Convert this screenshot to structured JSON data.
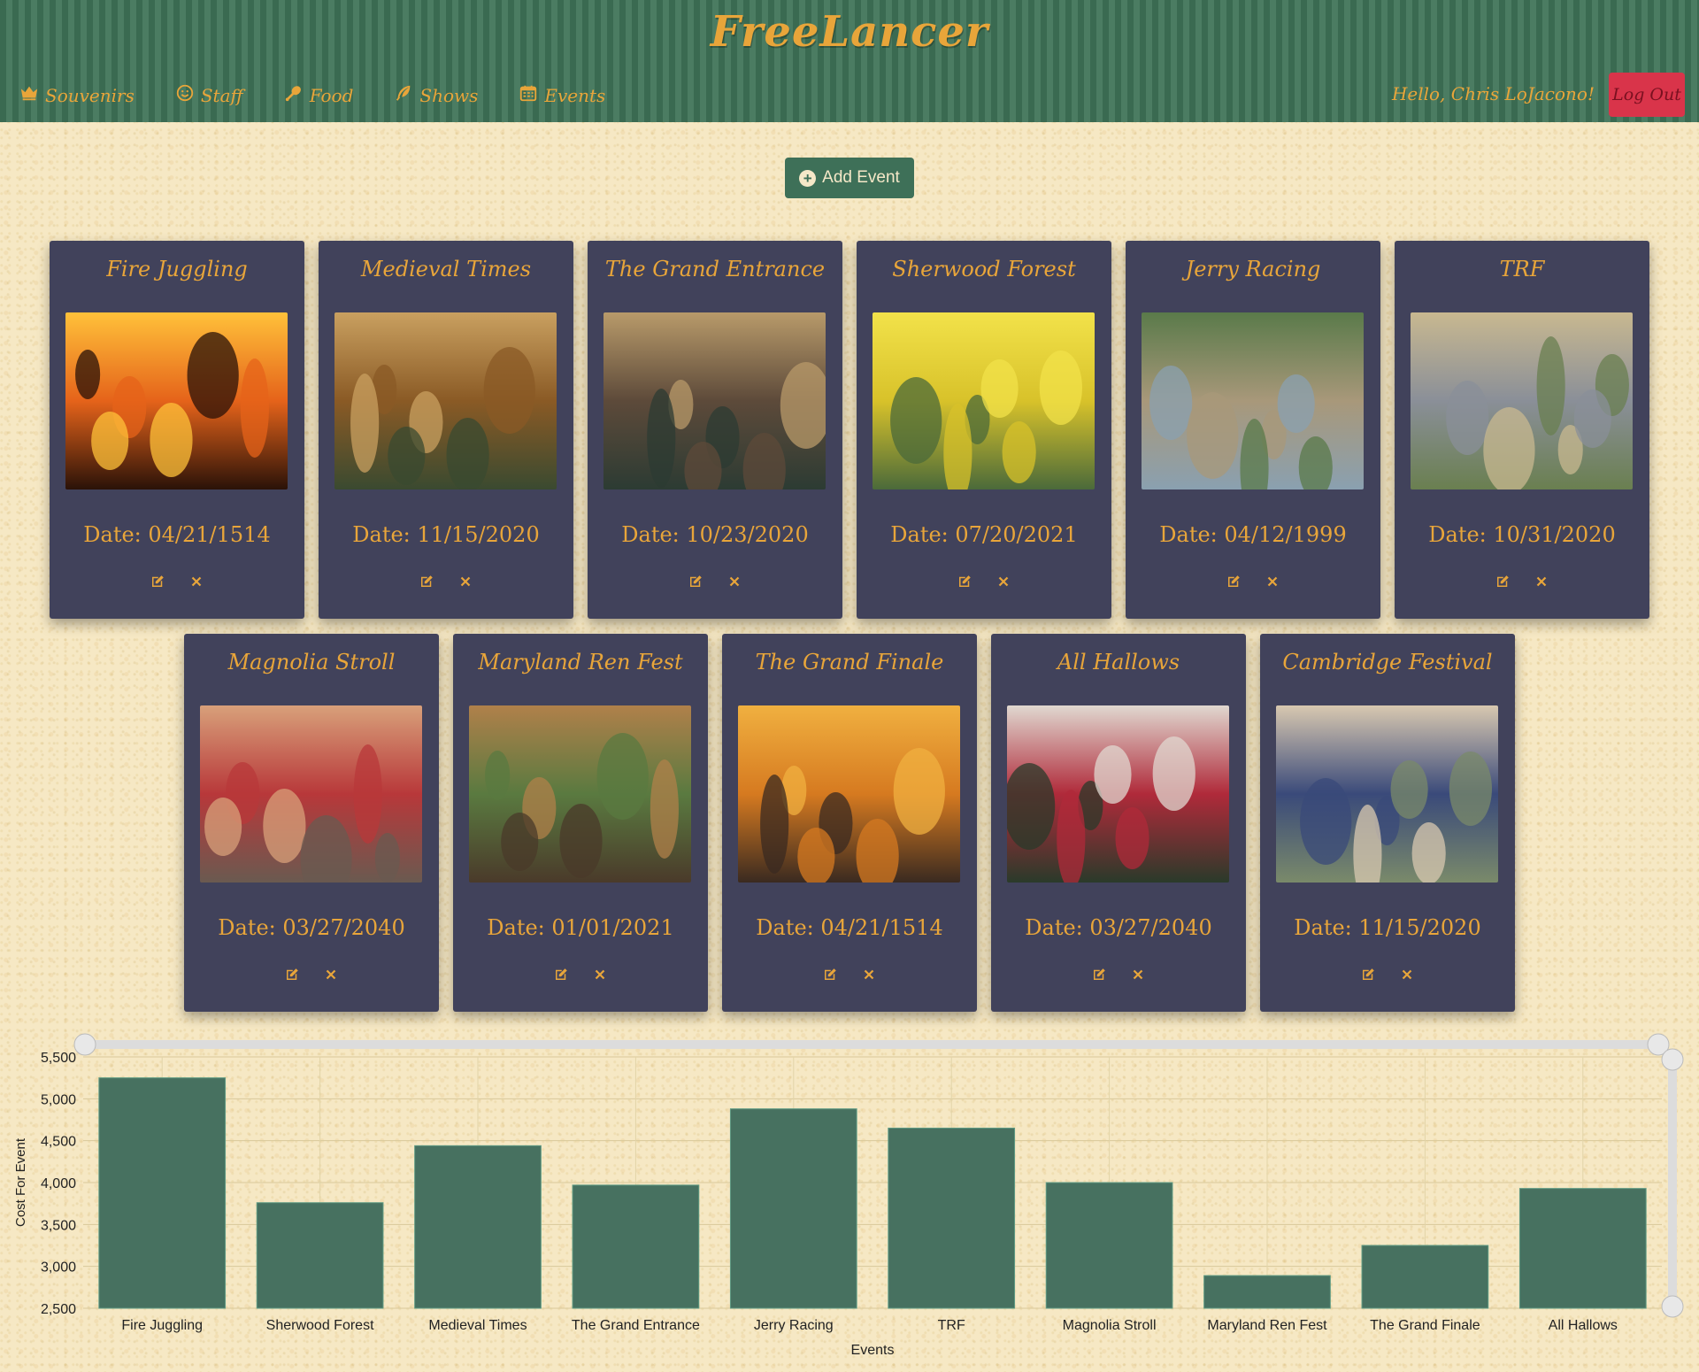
{
  "header": {
    "brand": "FreeLancer",
    "nav": [
      {
        "label": "Souvenirs",
        "icon": "crown-icon"
      },
      {
        "label": "Staff",
        "icon": "smile-icon"
      },
      {
        "label": "Food",
        "icon": "drumstick-icon"
      },
      {
        "label": "Shows",
        "icon": "feather-icon"
      },
      {
        "label": "Events",
        "icon": "calendar-icon"
      }
    ],
    "greeting": "Hello, Chris LoJacono!",
    "logout_label": "Log Out"
  },
  "add_event": {
    "label": "Add Event"
  },
  "events": [
    {
      "title": "Fire Juggling",
      "date": "Date: 04/21/1514"
    },
    {
      "title": "Medieval Times",
      "date": "Date: 11/15/2020"
    },
    {
      "title": "The Grand Entrance",
      "date": "Date: 10/23/2020"
    },
    {
      "title": "Sherwood Forest",
      "date": "Date: 07/20/2021"
    },
    {
      "title": "Jerry Racing",
      "date": "Date: 04/12/1999"
    },
    {
      "title": "TRF",
      "date": "Date: 10/31/2020"
    },
    {
      "title": "Magnolia Stroll",
      "date": "Date: 03/27/2040"
    },
    {
      "title": "Maryland Ren Fest",
      "date": "Date: 01/01/2021"
    },
    {
      "title": "The Grand Finale",
      "date": "Date: 04/21/1514"
    },
    {
      "title": "All Hallows",
      "date": "Date: 03/27/2040"
    },
    {
      "title": "Cambridge Festival",
      "date": "Date: 11/15/2020"
    }
  ],
  "colors": {
    "header_green": "#3e6e55",
    "accent_gold": "#e8a53a",
    "card_bg": "#41425b",
    "logout_red": "#d9344a",
    "bar_green": "#477160"
  },
  "chart_data": {
    "type": "bar",
    "xlabel": "Events",
    "ylabel": "Cost For Event",
    "categories": [
      "Fire Juggling",
      "Sherwood Forest",
      "Medieval Times",
      "The Grand Entrance",
      "Jerry Racing",
      "TRF",
      "Magnolia Stroll",
      "Maryland Ren Fest",
      "The Grand Finale",
      "All Hallows"
    ],
    "values": [
      5250,
      3760,
      4440,
      3970,
      4880,
      4650,
      4000,
      2890,
      3250,
      3930
    ],
    "ylim": [
      2500,
      5500
    ],
    "yticks": [
      "2,500",
      "3,000",
      "3,500",
      "4,000",
      "4,500",
      "5,000",
      "5,500"
    ],
    "grid": true
  }
}
